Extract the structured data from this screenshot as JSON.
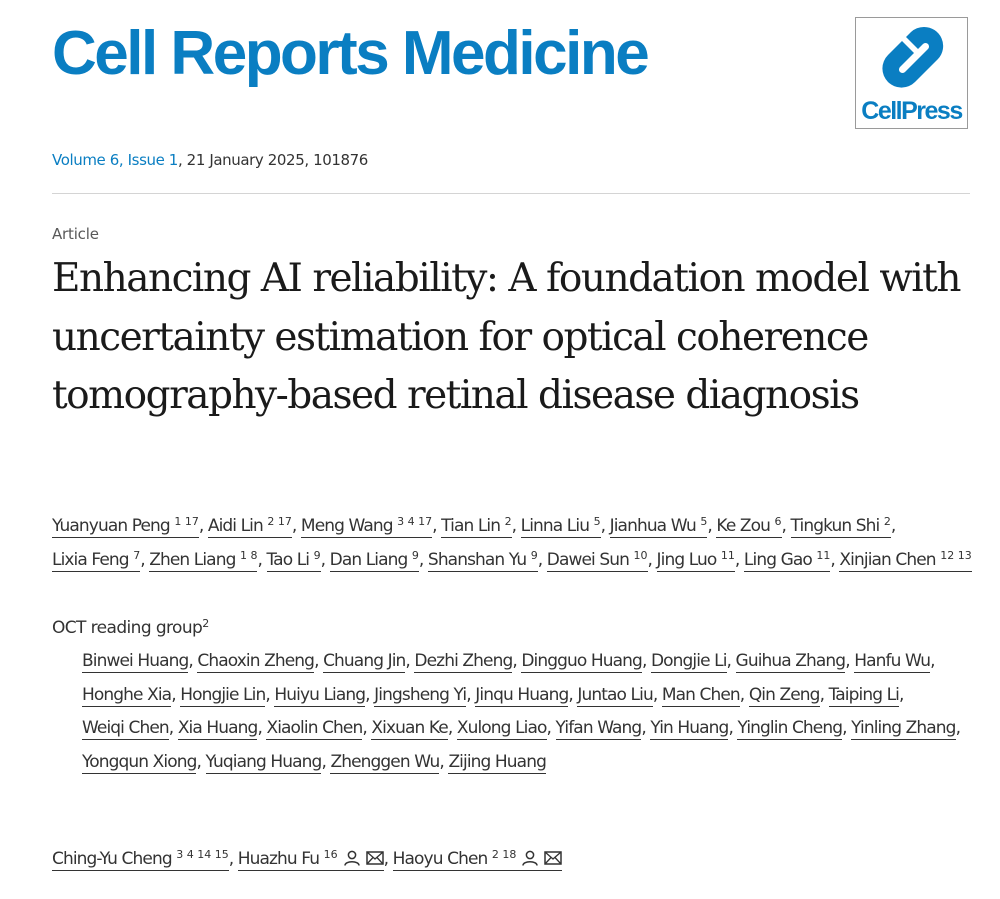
{
  "journal": {
    "title": "Cell Reports Medicine",
    "publisher_logo_text": "CellPress",
    "brand_color": "#0a7ec2"
  },
  "issue": {
    "volume_issue": "Volume 6, Issue 1",
    "rest": ", 21 January 2025, 101876"
  },
  "article": {
    "type": "Article",
    "title": "Enhancing AI reliability: A foundation model with uncertainty estimation for optical coherence tomography-based retinal disease diagnosis"
  },
  "authors": [
    {
      "name": "Yuanyuan Peng",
      "sup": "1 17"
    },
    {
      "name": "Aidi Lin",
      "sup": "2 17"
    },
    {
      "name": "Meng Wang",
      "sup": "3 4 17"
    },
    {
      "name": "Tian Lin",
      "sup": "2"
    },
    {
      "name": "Linna Liu",
      "sup": "5"
    },
    {
      "name": "Jianhua Wu",
      "sup": "5"
    },
    {
      "name": "Ke Zou",
      "sup": "6"
    },
    {
      "name": "Tingkun Shi",
      "sup": "2"
    },
    {
      "name": "Lixia Feng",
      "sup": "7"
    },
    {
      "name": "Zhen Liang",
      "sup": "1 8"
    },
    {
      "name": "Tao Li",
      "sup": "9"
    },
    {
      "name": "Dan Liang",
      "sup": "9"
    },
    {
      "name": "Shanshan Yu",
      "sup": "9"
    },
    {
      "name": "Dawei Sun",
      "sup": "10"
    },
    {
      "name": "Jing Luo",
      "sup": "11"
    },
    {
      "name": "Ling Gao",
      "sup": "11"
    },
    {
      "name": "Xinjian Chen",
      "sup": "12 13"
    }
  ],
  "group": {
    "name": "OCT reading group",
    "sup": "2",
    "members": [
      "Binwei Huang",
      "Chaoxin Zheng",
      "Chuang Jin",
      "Dezhi Zheng",
      "Dingguo Huang",
      "Dongjie Li",
      "Guihua Zhang",
      "Hanfu Wu",
      "Honghe Xia",
      "Hongjie Lin",
      "Huiyu Liang",
      "Jingsheng Yi",
      "Jinqu Huang",
      "Juntao Liu",
      "Man Chen",
      "Qin Zeng",
      "Taiping Li",
      "Weiqi Chen",
      "Xia Huang",
      "Xiaolin Chen",
      "Xixuan Ke",
      "Xulong Liao",
      "Yifan Wang",
      "Yin Huang",
      "Yinglin Cheng",
      "Yinling Zhang",
      "Yongqun Xiong",
      "Yuqiang Huang",
      "Zhenggen Wu",
      "Zijing Huang"
    ]
  },
  "corresponding_authors": [
    {
      "name": "Ching-Yu Cheng",
      "sup": "3 4 14 15",
      "icons": []
    },
    {
      "name": "Huazhu Fu",
      "sup": "16",
      "icons": [
        "person-icon",
        "envelope-icon"
      ]
    },
    {
      "name": "Haoyu Chen",
      "sup": "2 18",
      "icons": [
        "person-icon",
        "envelope-icon"
      ]
    }
  ],
  "author_separator": ", ",
  "group_separator": ", "
}
